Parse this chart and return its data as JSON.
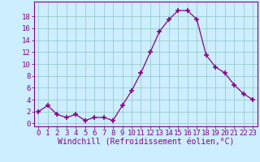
{
  "x": [
    0,
    1,
    2,
    3,
    4,
    5,
    6,
    7,
    8,
    9,
    10,
    11,
    12,
    13,
    14,
    15,
    16,
    17,
    18,
    19,
    20,
    21,
    22,
    23
  ],
  "y": [
    2,
    3,
    1.5,
    1,
    1.5,
    0.5,
    1,
    1,
    0.5,
    3,
    5.5,
    8.5,
    12,
    15.5,
    17.5,
    19,
    19,
    17.5,
    11.5,
    9.5,
    8.5,
    6.5,
    5,
    4
  ],
  "line_color": "#880088",
  "marker": "+",
  "marker_size": 4,
  "bg_color": "#cceeff",
  "grid_color": "#99cccc",
  "xlabel": "Windchill (Refroidissement éolien,°C)",
  "xlabel_color": "#880088",
  "xlabel_fontsize": 7,
  "ylabel_ticks": [
    0,
    2,
    4,
    6,
    8,
    10,
    12,
    14,
    16,
    18
  ],
  "xlim": [
    -0.5,
    23.5
  ],
  "ylim": [
    -0.5,
    20.5
  ],
  "tick_fontsize": 6.5,
  "tick_color": "#880088",
  "spine_color": "#880088"
}
